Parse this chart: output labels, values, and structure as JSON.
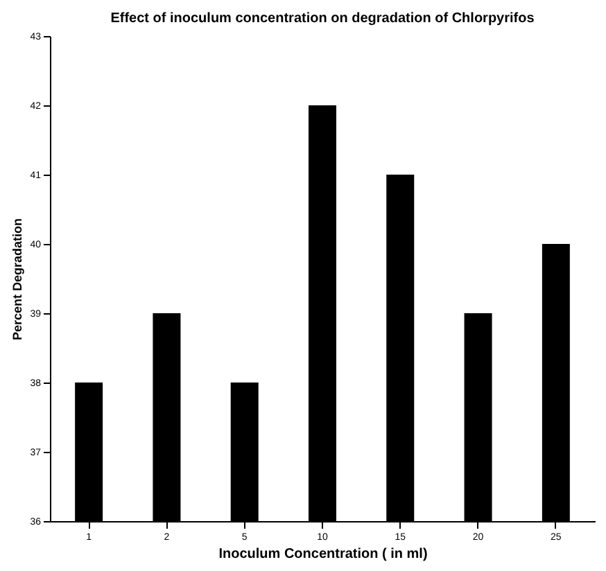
{
  "chart_data": {
    "type": "bar",
    "title": "Effect of inoculum concentration on degradation of Chlorpyrifos",
    "xlabel": "Inoculum Concentration ( in ml)",
    "ylabel": "Percent Degradation",
    "categories": [
      "1",
      "2",
      "5",
      "10",
      "15",
      "20",
      "25"
    ],
    "values": [
      38,
      39,
      38,
      42,
      41,
      39,
      40
    ],
    "color": "#000000",
    "ylim": [
      36,
      43
    ],
    "yticks": [
      36,
      37,
      38,
      39,
      40,
      41,
      42,
      43
    ],
    "grid": false
  }
}
